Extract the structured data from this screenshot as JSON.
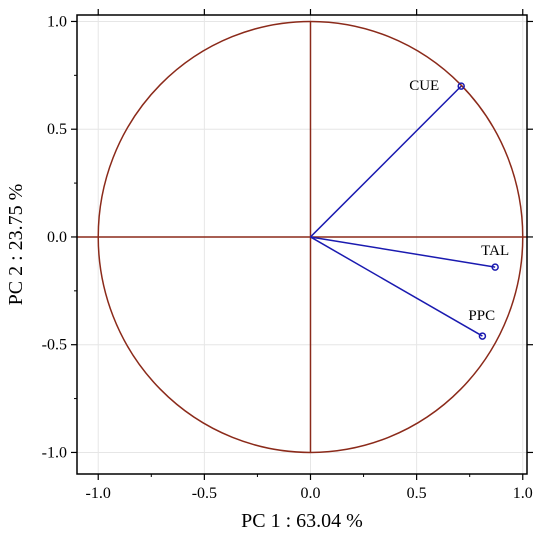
{
  "chart_data": {
    "type": "scatter",
    "title": "",
    "xlabel": "PC 1 : 63.04 %",
    "ylabel": "PC 2 : 23.75 %",
    "xlim": [
      -1.1,
      1.02
    ],
    "ylim": [
      -1.1,
      1.03
    ],
    "xticks": [
      -1.0,
      -0.5,
      0.0,
      0.5,
      1.0
    ],
    "xtick_labels": [
      "-1.0",
      "-0.5",
      "0.0",
      "0.5",
      "1.0"
    ],
    "yticks": [
      -1.0,
      -0.5,
      0.0,
      0.5,
      1.0
    ],
    "ytick_labels": [
      "-1.0",
      "-0.5",
      "0.0",
      "0.5",
      "1.0"
    ],
    "grid": true,
    "unit_circle": true,
    "series": [
      {
        "points": [
          {
            "label": "CUE",
            "x": 0.71,
            "y": 0.7
          },
          {
            "label": "TAL",
            "x": 0.87,
            "y": -0.14
          },
          {
            "label": "PPC",
            "x": 0.81,
            "y": -0.46
          }
        ]
      }
    ],
    "colors": {
      "circle": "#8B2A1A",
      "vectors": "#1A1AB0",
      "grid": "#E6E6E6",
      "frame": "#000000"
    }
  }
}
